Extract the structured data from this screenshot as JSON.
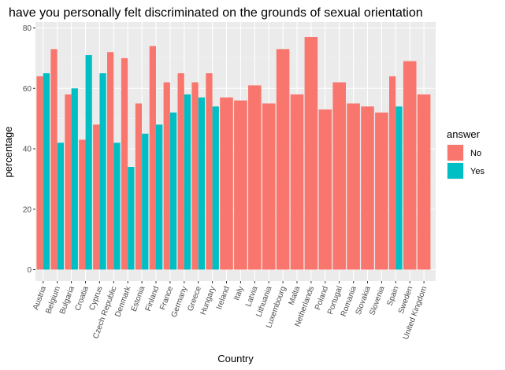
{
  "chart_data": {
    "type": "bar",
    "title": "have you personally felt discriminated on the grounds of sexual orientation",
    "xlabel": "Country",
    "ylabel": "percentage",
    "ylim": [
      0,
      80
    ],
    "yticks": [
      0,
      20,
      40,
      60,
      80
    ],
    "grid": true,
    "legend": {
      "title": "answer",
      "placement": "right"
    },
    "categories": [
      "Austria",
      "Belgium",
      "Bulgaria",
      "Croatia",
      "Cyprus",
      "Czech Republic",
      "Denmark",
      "Estonia",
      "Finland",
      "France",
      "Germany",
      "Greece",
      "Hungary",
      "Ireland",
      "Italy",
      "Latvia",
      "Lithuania",
      "Luxembourg",
      "Malta",
      "Netherlands",
      "Poland",
      "Portugal",
      "Romania",
      "Slovakia",
      "Slovenia",
      "Spain",
      "Sweden",
      "United Kingdom"
    ],
    "series": [
      {
        "name": "No",
        "color": "#F8766D",
        "values": [
          64,
          73,
          58,
          43,
          48,
          72,
          70,
          55,
          74,
          62,
          65,
          62,
          65,
          57,
          56,
          61,
          55,
          73,
          58,
          77,
          53,
          62,
          55,
          54,
          52,
          64,
          69,
          58
        ]
      },
      {
        "name": "Yes",
        "color": "#00BFC4",
        "values": [
          65,
          42,
          60,
          71,
          65,
          42,
          34,
          45,
          48,
          52,
          58,
          57,
          54,
          null,
          null,
          null,
          null,
          null,
          null,
          null,
          null,
          null,
          null,
          null,
          null,
          54,
          null,
          null
        ]
      }
    ]
  }
}
